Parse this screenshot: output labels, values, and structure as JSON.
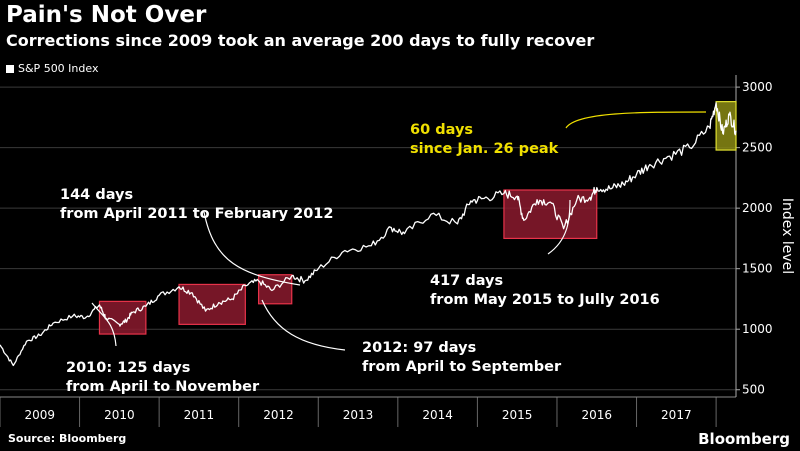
{
  "title": "Pain's Not Over",
  "subtitle": "Corrections since 2009 took an average 200 days to fully recover",
  "legend_label": "S&P 500 Index",
  "source": "Source: Bloomberg",
  "brand": "Bloomberg",
  "colors": {
    "background": "#000000",
    "line": "#ffffff",
    "correction_fill": "#8b1a2e",
    "correction_border": "#e8334a",
    "current_fill": "#8a8a14",
    "current_border": "#e0e030",
    "current_text": "#f0e000"
  },
  "chart_data": {
    "type": "line",
    "title": "Pain's Not Over",
    "subtitle": "Corrections since 2009 took an average 200 days to fully recover",
    "ylabel": "Index level",
    "ylim": [
      440,
      3100
    ],
    "y_ticks": [
      500,
      1000,
      1500,
      2000,
      2500,
      3000
    ],
    "x_range": [
      "2009-01",
      "2018-04"
    ],
    "x_tick_labels": [
      "2009",
      "2010",
      "2011",
      "2012",
      "2013",
      "2014",
      "2015",
      "2016",
      "2017"
    ],
    "grid": true,
    "series": [
      {
        "name": "S&P 500 Index",
        "points": [
          [
            "2009-01",
            870
          ],
          [
            "2009-03",
            700
          ],
          [
            "2009-05",
            900
          ],
          [
            "2009-07",
            950
          ],
          [
            "2009-09",
            1050
          ],
          [
            "2009-12",
            1110
          ],
          [
            "2010-02",
            1100
          ],
          [
            "2010-04",
            1200
          ],
          [
            "2010-05",
            1090
          ],
          [
            "2010-07",
            1040
          ],
          [
            "2010-08",
            1070
          ],
          [
            "2010-09",
            1140
          ],
          [
            "2010-11",
            1190
          ],
          [
            "2011-01",
            1280
          ],
          [
            "2011-04",
            1350
          ],
          [
            "2011-06",
            1300
          ],
          [
            "2011-08",
            1150
          ],
          [
            "2011-10",
            1220
          ],
          [
            "2011-12",
            1250
          ],
          [
            "2012-02",
            1360
          ],
          [
            "2012-04",
            1400
          ],
          [
            "2012-06",
            1320
          ],
          [
            "2012-09",
            1440
          ],
          [
            "2012-11",
            1400
          ],
          [
            "2013-01",
            1500
          ],
          [
            "2013-05",
            1650
          ],
          [
            "2013-09",
            1690
          ],
          [
            "2013-12",
            1840
          ],
          [
            "2014-02",
            1790
          ],
          [
            "2014-06",
            1950
          ],
          [
            "2014-10",
            1870
          ],
          [
            "2014-12",
            2060
          ],
          [
            "2015-02",
            2080
          ],
          [
            "2015-05",
            2120
          ],
          [
            "2015-07",
            2100
          ],
          [
            "2015-08",
            1900
          ],
          [
            "2015-10",
            2070
          ],
          [
            "2015-12",
            2050
          ],
          [
            "2016-02",
            1830
          ],
          [
            "2016-04",
            2070
          ],
          [
            "2016-06",
            2090
          ],
          [
            "2016-07",
            2170
          ],
          [
            "2016-09",
            2160
          ],
          [
            "2016-11",
            2200
          ],
          [
            "2017-01",
            2280
          ],
          [
            "2017-03",
            2360
          ],
          [
            "2017-06",
            2430
          ],
          [
            "2017-09",
            2500
          ],
          [
            "2017-12",
            2670
          ],
          [
            "2018-01",
            2870
          ],
          [
            "2018-02",
            2620
          ],
          [
            "2018-03",
            2770
          ],
          [
            "2018-04",
            2640
          ]
        ]
      }
    ],
    "corrections": [
      {
        "start": "2010-04",
        "end": "2010-11",
        "ymin": 960,
        "ymax": 1230,
        "style": "red"
      },
      {
        "start": "2011-04",
        "end": "2012-02",
        "ymin": 1040,
        "ymax": 1370,
        "style": "red"
      },
      {
        "start": "2012-04",
        "end": "2012-09",
        "ymin": 1210,
        "ymax": 1450,
        "style": "red"
      },
      {
        "start": "2015-05",
        "end": "2016-07",
        "ymin": 1750,
        "ymax": 2150,
        "style": "red"
      },
      {
        "start": "2018-01",
        "end": "2018-04",
        "ymin": 2480,
        "ymax": 2880,
        "style": "yellow"
      }
    ],
    "annotations": [
      {
        "lines": [
          "144 days",
          "from April 2011 to February 2012"
        ]
      },
      {
        "lines": [
          "2010: 125 days",
          "from April to November"
        ]
      },
      {
        "lines": [
          "2012: 97 days",
          "from April to September"
        ]
      },
      {
        "lines": [
          "417 days",
          "from May 2015 to Jully 2016"
        ]
      },
      {
        "lines": [
          "60 days",
          "since Jan. 26 peak"
        ]
      }
    ]
  }
}
